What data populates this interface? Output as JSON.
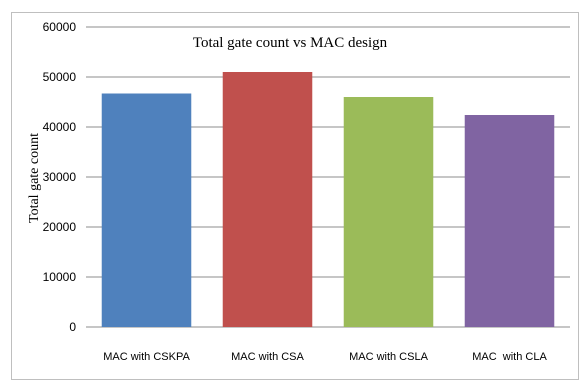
{
  "chart_data": {
    "type": "bar",
    "title": "Total gate count vs MAC design",
    "xlabel": "",
    "ylabel": "Total gate  count",
    "categories": [
      "MAC with CSKPA",
      "MAC with CSA",
      "MAC with CSLA",
      "MAC  with CLA"
    ],
    "values": [
      46700,
      51000,
      46000,
      42400
    ],
    "colors": [
      "#4f81bd",
      "#c0504d",
      "#9bbb59",
      "#8064a2"
    ],
    "ylim": [
      0,
      60000
    ],
    "yticks": [
      0,
      10000,
      20000,
      30000,
      40000,
      50000,
      60000
    ],
    "grid": true,
    "legend": "none"
  }
}
